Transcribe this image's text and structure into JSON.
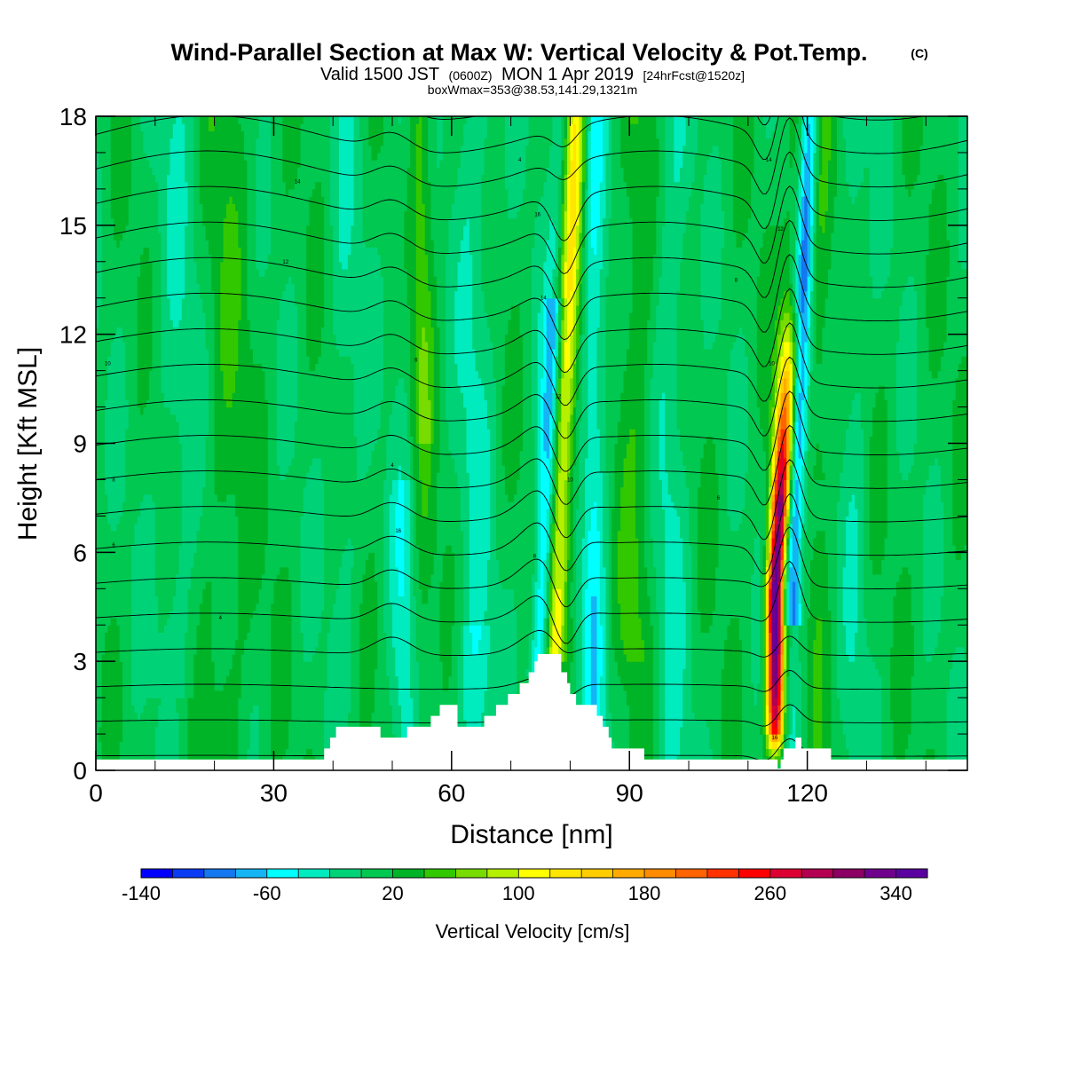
{
  "chart_data": {
    "type": "heatmap",
    "title": "Wind-Parallel Section at Max W: Vertical Velocity & Pot.Temp.",
    "title_tag": "(C)",
    "subtitle": {
      "valid": "Valid 1500 JST",
      "zulu": "(0600Z)",
      "date": "MON 1 Apr 2019",
      "forecast": "[24hrFcst@1520z]"
    },
    "info_line": "boxWmax=353@38.53,141.29,1321m",
    "xlabel": "Distance [nm]",
    "ylabel": "Height [Kft MSL]",
    "xlim": [
      0,
      147
    ],
    "ylim": [
      0,
      18
    ],
    "x_ticks": [
      "0",
      "30",
      "60",
      "90",
      "120"
    ],
    "x_tick_values": [
      0,
      30,
      60,
      90,
      120
    ],
    "y_ticks": [
      "0",
      "3",
      "6",
      "9",
      "12",
      "15",
      "18"
    ],
    "y_tick_values": [
      0,
      3,
      6,
      9,
      12,
      15,
      18
    ],
    "colorbar": {
      "label": "Vertical Velocity [cm/s]",
      "min": -140,
      "max": 360,
      "step": 20,
      "tick_labels": [
        "-140",
        "-60",
        "20",
        "100",
        "180",
        "260",
        "340"
      ],
      "tick_values": [
        -140,
        -60,
        20,
        100,
        180,
        260,
        340
      ],
      "colors": [
        "#0000ff",
        "#0a3cf5",
        "#1478f0",
        "#14b4f5",
        "#00ffff",
        "#00ebbe",
        "#00d278",
        "#00c850",
        "#00b428",
        "#32c800",
        "#78dc00",
        "#b4f000",
        "#ffff00",
        "#ffe600",
        "#ffcd00",
        "#ffaa00",
        "#ff8c00",
        "#ff6400",
        "#ff3200",
        "#ff0000",
        "#dc0032",
        "#b40050",
        "#8c0064",
        "#6e008c",
        "#5a00a0"
      ]
    },
    "terrain": {
      "description_units": "x in nm, top in kft",
      "segments": [
        [
          0,
          0.3
        ],
        [
          37.5,
          0.3
        ],
        [
          38.5,
          0.6
        ],
        [
          39.5,
          0.9
        ],
        [
          40.5,
          1.2
        ],
        [
          47.5,
          1.2
        ],
        [
          48,
          0.9
        ],
        [
          52,
          0.9
        ],
        [
          52.5,
          1.2
        ],
        [
          56,
          1.2
        ],
        [
          56.5,
          1.5
        ],
        [
          57.5,
          1.5
        ],
        [
          58,
          1.8
        ],
        [
          60.5,
          1.8
        ],
        [
          61,
          1.2
        ],
        [
          65,
          1.2
        ],
        [
          65.5,
          1.5
        ],
        [
          67,
          1.5
        ],
        [
          67.5,
          1.8
        ],
        [
          69,
          1.8
        ],
        [
          69.5,
          2.1
        ],
        [
          71,
          2.1
        ],
        [
          71.5,
          2.4
        ],
        [
          72.5,
          2.4
        ],
        [
          73,
          2.7
        ],
        [
          73.5,
          2.7
        ],
        [
          74,
          3.0
        ],
        [
          74.5,
          3.2
        ],
        [
          78,
          3.2
        ],
        [
          78.5,
          2.7
        ],
        [
          79.5,
          2.4
        ],
        [
          80,
          2.1
        ],
        [
          81,
          1.8
        ],
        [
          84,
          1.8
        ],
        [
          84.5,
          1.5
        ],
        [
          85.5,
          1.2
        ],
        [
          86.5,
          0.9
        ],
        [
          87,
          0.6
        ],
        [
          91,
          0.6
        ],
        [
          92.5,
          0.3
        ],
        [
          114,
          0.3
        ],
        [
          115,
          0.05
        ],
        [
          115.5,
          0.3
        ],
        [
          116,
          0.6
        ],
        [
          118,
          0.9
        ],
        [
          119,
          0.6
        ],
        [
          121,
          0.6
        ],
        [
          124,
          0.3
        ],
        [
          147,
          0.3
        ]
      ]
    },
    "features": [
      {
        "kind": "updraft",
        "x_center": 79,
        "w_peak": 120,
        "z_top": 18
      },
      {
        "kind": "downdraft",
        "x_center": 77,
        "w_peak": -90,
        "z_top": 12
      },
      {
        "kind": "updraft",
        "x_center": 115,
        "w_peak": 353,
        "z_top": 15
      },
      {
        "kind": "downdraft",
        "x_center": 118,
        "w_peak": -100,
        "z_top": 18
      },
      {
        "kind": "updraft",
        "x_center": 55,
        "w_peak": 60,
        "z_top": 18
      }
    ],
    "theta_labels": [
      "4",
      "6",
      "8",
      "10",
      "12",
      "14",
      "16"
    ]
  }
}
